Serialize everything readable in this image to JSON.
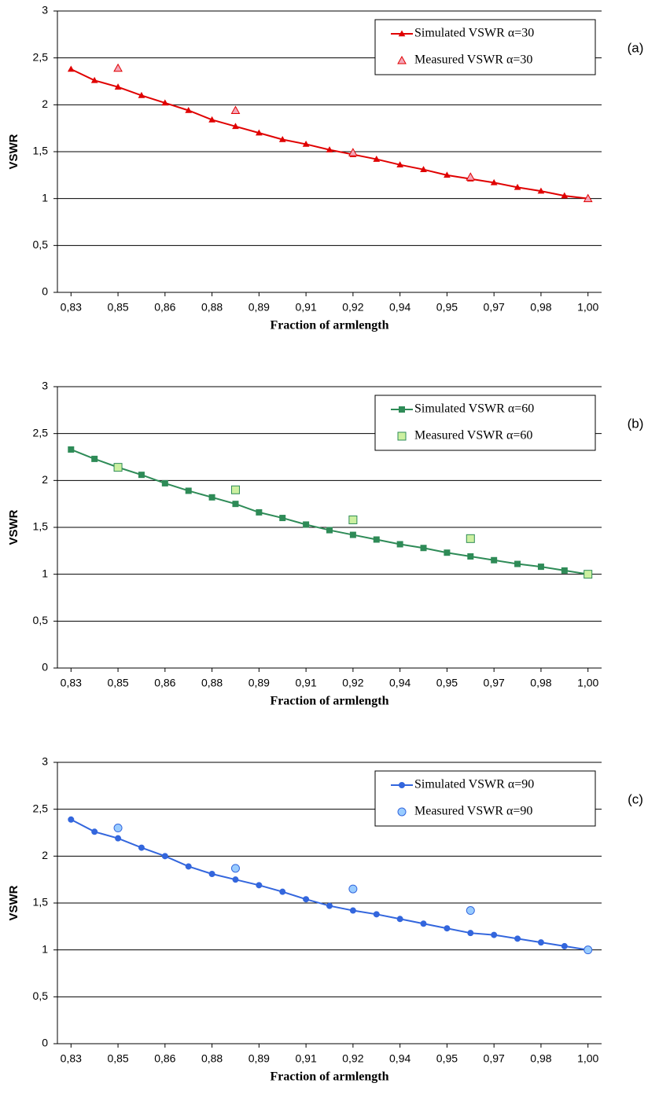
{
  "chart_data": [
    {
      "type": "line",
      "annotation": "(a)",
      "x_label": "Fraction of armlength",
      "y_label": "VSWR",
      "categories": [
        "0,83",
        null,
        "0,85",
        null,
        "0,86",
        null,
        "0,88",
        null,
        "0,89",
        null,
        "0,91",
        null,
        "0,92",
        null,
        "0,94",
        null,
        "0,95",
        null,
        "0,97",
        null,
        "0,98",
        null,
        "1,00"
      ],
      "series": [
        {
          "name": "Simulated VSWR α=30",
          "color": "#e00000",
          "marker": "triangle",
          "line": true,
          "values": [
            2.38,
            2.26,
            2.19,
            2.1,
            2.02,
            1.94,
            1.84,
            1.77,
            1.7,
            1.63,
            1.58,
            1.52,
            1.47,
            1.42,
            1.36,
            1.31,
            1.25,
            1.21,
            1.17,
            1.12,
            1.08,
            1.03,
            1.0
          ]
        },
        {
          "name": "Measured VSWR α=30",
          "color": "#f4a6b8",
          "marker": "triangle",
          "line": false,
          "values": [
            null,
            null,
            2.39,
            null,
            null,
            null,
            null,
            1.94,
            null,
            null,
            null,
            null,
            1.49,
            null,
            null,
            null,
            null,
            1.23,
            null,
            null,
            null,
            null,
            1.0
          ]
        }
      ],
      "ylim": [
        0,
        3
      ],
      "yticks": [
        0,
        {
          "value": 0.5,
          "label": "0,5"
        },
        1,
        {
          "value": 1.5,
          "label": "1,5"
        },
        2,
        {
          "value": 2.5,
          "label": "2,5"
        },
        3
      ],
      "grid": true,
      "legend": "upper right"
    },
    {
      "type": "line",
      "annotation": "(b)",
      "x_label": "Fraction of armlength",
      "y_label": "VSWR",
      "categories": [
        "0,83",
        null,
        "0,85",
        null,
        "0,86",
        null,
        "0,88",
        null,
        "0,89",
        null,
        "0,91",
        null,
        "0,92",
        null,
        "0,94",
        null,
        "0,95",
        null,
        "0,97",
        null,
        "0,98",
        null,
        "1,00"
      ],
      "series": [
        {
          "name": "Simulated VSWR α=60",
          "color": "#2e8b57",
          "marker": "square",
          "line": true,
          "values": [
            2.33,
            2.23,
            2.14,
            2.06,
            1.97,
            1.89,
            1.82,
            1.75,
            1.66,
            1.6,
            1.53,
            1.47,
            1.42,
            1.37,
            1.32,
            1.28,
            1.23,
            1.19,
            1.15,
            1.11,
            1.08,
            1.04,
            1.0
          ]
        },
        {
          "name": "Measured VSWR α=60",
          "color": "#ccf0a0",
          "marker": "square",
          "line": false,
          "values": [
            null,
            null,
            2.14,
            null,
            null,
            null,
            null,
            1.9,
            null,
            null,
            null,
            null,
            1.58,
            null,
            null,
            null,
            null,
            1.38,
            null,
            null,
            null,
            null,
            1.0
          ]
        }
      ],
      "ylim": [
        0,
        3
      ],
      "yticks": [
        0,
        {
          "value": 0.5,
          "label": "0,5"
        },
        1,
        {
          "value": 1.5,
          "label": "1,5"
        },
        2,
        {
          "value": 2.5,
          "label": "2,5"
        },
        3
      ],
      "grid": true,
      "legend": "upper right"
    },
    {
      "type": "line",
      "annotation": "(c)",
      "x_label": "Fraction of armlength",
      "y_label": "VSWR",
      "categories": [
        "0,83",
        null,
        "0,85",
        null,
        "0,86",
        null,
        "0,88",
        null,
        "0,89",
        null,
        "0,91",
        null,
        "0,92",
        null,
        "0,94",
        null,
        "0,95",
        null,
        "0,97",
        null,
        "0,98",
        null,
        "1,00"
      ],
      "series": [
        {
          "name": "Simulated VSWR α=90",
          "color": "#3366dd",
          "marker": "circle",
          "line": true,
          "values": [
            2.39,
            2.26,
            2.19,
            2.09,
            2.0,
            1.89,
            1.81,
            1.75,
            1.69,
            1.62,
            1.54,
            1.47,
            1.42,
            1.38,
            1.33,
            1.28,
            1.23,
            1.18,
            1.16,
            1.12,
            1.08,
            1.04,
            1.0
          ]
        },
        {
          "name": "Measured VSWR α=90",
          "color": "#99ccff",
          "marker": "circle",
          "line": false,
          "values": [
            null,
            null,
            2.3,
            null,
            null,
            null,
            null,
            1.87,
            null,
            null,
            null,
            null,
            1.65,
            null,
            null,
            null,
            null,
            1.42,
            null,
            null,
            null,
            null,
            1.0
          ]
        }
      ],
      "ylim": [
        0,
        3
      ],
      "yticks": [
        0,
        {
          "value": 0.5,
          "label": "0,5"
        },
        1,
        {
          "value": 1.5,
          "label": "1,5"
        },
        2,
        {
          "value": 2.5,
          "label": "2,5"
        },
        3
      ],
      "grid": true,
      "legend": "upper right"
    }
  ]
}
